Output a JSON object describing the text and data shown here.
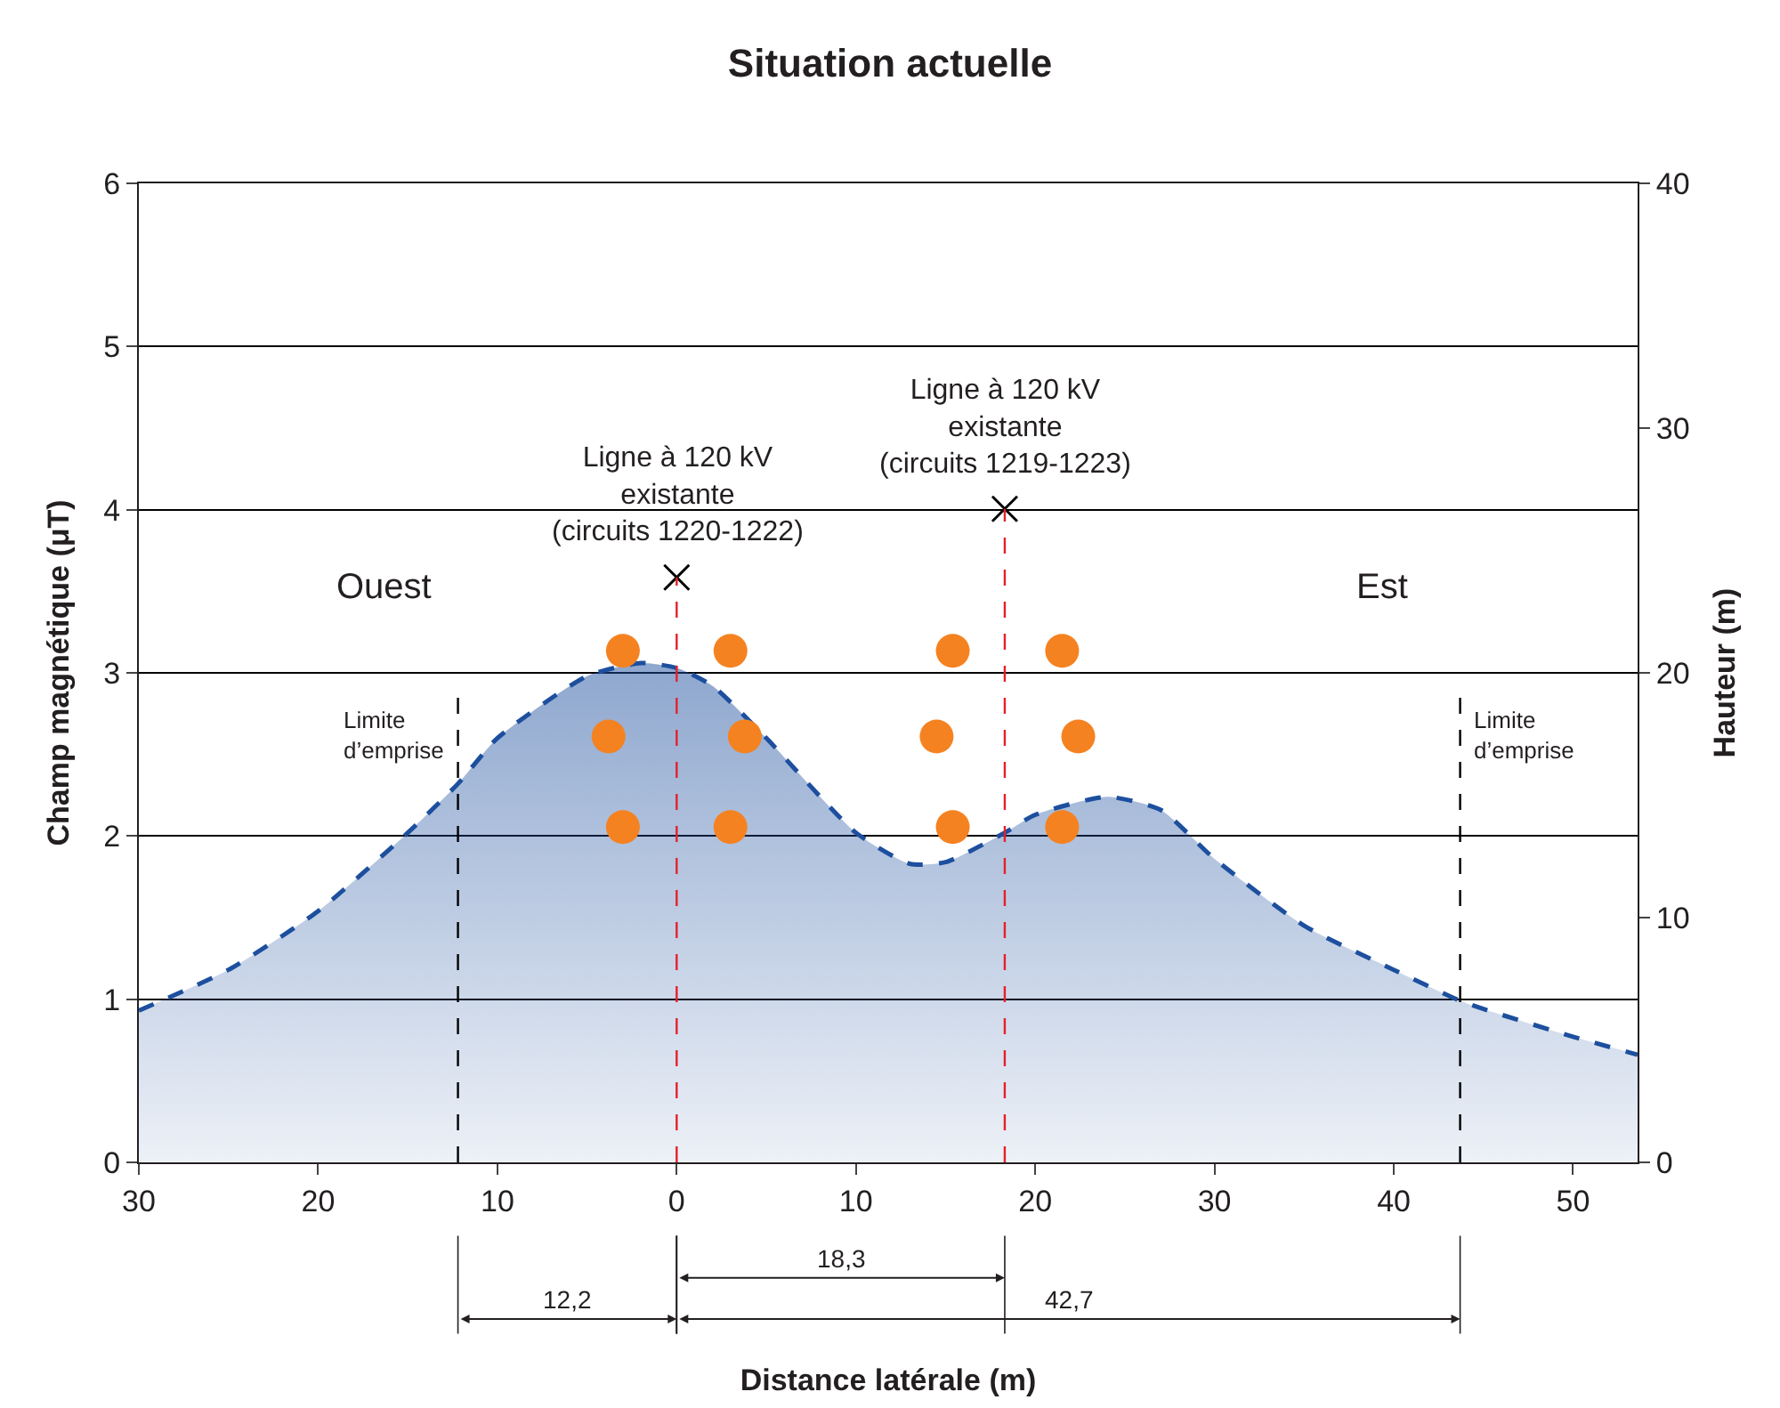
{
  "chart_data": {
    "type": "area",
    "title": "Situation actuelle",
    "xlabel": "Distance latérale (m)",
    "ylabel": "Champ magnétique (μT)",
    "y2label": "Hauteur (m)",
    "xlim": [
      -30,
      53.6
    ],
    "xticks": [
      {
        "value": -30,
        "label": "30"
      },
      {
        "value": -20,
        "label": "20"
      },
      {
        "value": -10,
        "label": "10"
      },
      0,
      10,
      20,
      30,
      40,
      50
    ],
    "ylim": [
      0,
      6
    ],
    "yticks": [
      0,
      1,
      2,
      3,
      4,
      5,
      6
    ],
    "y2lim": [
      0,
      40
    ],
    "y2ticks": [
      0,
      10,
      20,
      30,
      40
    ],
    "grid": "y",
    "legend": false,
    "line_style": "dashed",
    "series": [
      {
        "color": "#1d4f9e",
        "x": [
          -30,
          -25,
          -20,
          -15,
          -12.2,
          -10,
          -5,
          -2,
          0,
          2,
          5,
          10,
          13,
          15,
          18.3,
          20,
          24,
          27,
          30,
          35,
          40,
          43.7,
          45,
          50,
          53.6
        ],
        "values": [
          0.93,
          1.18,
          1.54,
          2.02,
          2.32,
          2.6,
          2.98,
          3.06,
          3.03,
          2.92,
          2.6,
          2.02,
          1.83,
          1.84,
          2.02,
          2.13,
          2.24,
          2.16,
          1.86,
          1.45,
          1.18,
          0.99,
          0.94,
          0.77,
          0.66
        ]
      },
      {
        "type": "scatter",
        "axis": "y2",
        "marker": "circle",
        "color": "#f58220",
        "x": [
          -3,
          3,
          -3.8,
          3.8,
          -3,
          3,
          15.4,
          21.5,
          14.5,
          22.4,
          15.4,
          21.5
        ],
        "values": [
          20.9,
          20.9,
          17.4,
          17.4,
          13.7,
          13.7,
          20.9,
          20.9,
          17.4,
          17.4,
          13.7,
          13.7
        ]
      },
      {
        "type": "scatter",
        "axis": "y2",
        "marker": "cross",
        "color": "#000000",
        "x": [
          0,
          18.3
        ],
        "values": [
          23.9,
          26.7
        ]
      }
    ],
    "ref_lines": [
      {
        "axis": "x",
        "value": -12.2,
        "label": "Limite\nd’emprise",
        "color": "#000000",
        "line_style": "dashed"
      },
      {
        "axis": "x",
        "value": 0,
        "label": "Ligne à 120 kV\nexistante\n(circuits 1220-1222)",
        "color": "#e4202a",
        "line_style": "dashed"
      },
      {
        "axis": "x",
        "value": 18.3,
        "label": "Ligne à 120 kV\nexistante\n(circuits 1219-1223)",
        "color": "#e4202a",
        "line_style": "dashed"
      },
      {
        "axis": "x",
        "value": 43.7,
        "label": "Limite\nd’emprise",
        "color": "#000000",
        "line_style": "dashed"
      }
    ],
    "annotations": [
      "Ouest",
      "Est",
      "12,2",
      "18,3",
      "42,7"
    ]
  }
}
